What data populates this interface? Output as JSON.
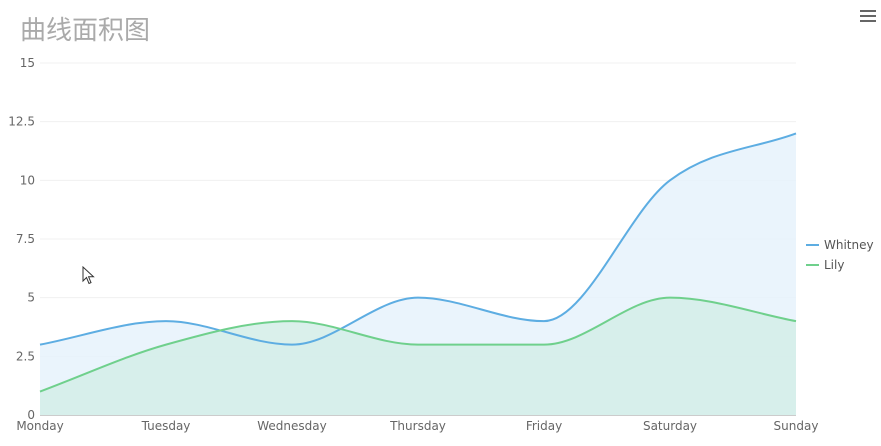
{
  "menu_icon": "hamburger-menu-icon",
  "cursor_icon": "mouse-pointer-icon",
  "chart_data": {
    "type": "area",
    "title": "曲线面积图",
    "xlabel": "",
    "ylabel": "",
    "categories": [
      "Monday",
      "Tuesday",
      "Wednesday",
      "Thursday",
      "Friday",
      "Saturday",
      "Sunday"
    ],
    "ylim": [
      0,
      15
    ],
    "yticks": [
      0,
      2.5,
      5,
      7.5,
      10,
      12.5,
      15
    ],
    "ytick_labels": [
      "0",
      "2.5",
      "5",
      "7.5",
      "10",
      "12.5",
      "15"
    ],
    "grid": true,
    "legend_position": "right",
    "series": [
      {
        "name": "Whitney",
        "values": [
          3,
          4,
          3,
          5,
          4,
          10,
          12
        ],
        "color": "#5DADE2",
        "fill": "#E6F2FB"
      },
      {
        "name": "Lily",
        "values": [
          1,
          3,
          4,
          3,
          3,
          5,
          4
        ],
        "color": "#6FD08C",
        "fill": "#D4EDE8"
      }
    ]
  }
}
